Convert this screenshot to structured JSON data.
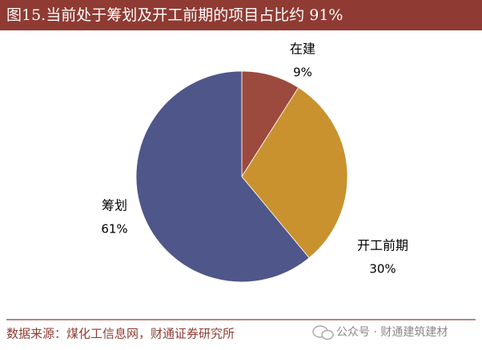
{
  "chart_data": {
    "type": "pie",
    "title": "图15.当前处于筹划及开工前期的项目占比约 91%",
    "categories": [
      "在建",
      "开工前期",
      "筹划"
    ],
    "values": [
      9,
      30,
      61
    ],
    "value_labels": [
      "9%",
      "30%",
      "61%"
    ],
    "colors": [
      "#9c4a3e",
      "#c9922f",
      "#4f5689"
    ],
    "source": "数据来源：煤化工信息网，财通证券研究所",
    "watermark": "公众号 · 财通建筑建材"
  }
}
